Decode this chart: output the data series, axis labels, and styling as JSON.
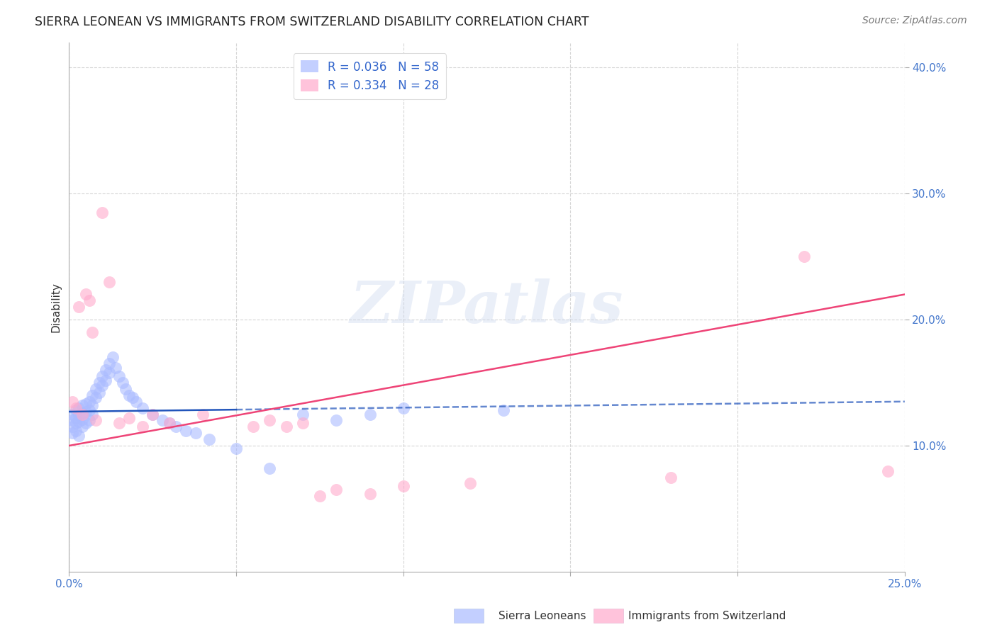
{
  "title": "SIERRA LEONEAN VS IMMIGRANTS FROM SWITZERLAND DISABILITY CORRELATION CHART",
  "source": "Source: ZipAtlas.com",
  "ylabel": "Disability",
  "xlim": [
    0.0,
    0.25
  ],
  "ylim": [
    0.0,
    0.42
  ],
  "xticks": [
    0.0,
    0.05,
    0.1,
    0.15,
    0.2,
    0.25
  ],
  "yticks": [
    0.1,
    0.2,
    0.3,
    0.4
  ],
  "xticklabels": [
    "0.0%",
    "",
    "",
    "",
    "",
    "25.0%"
  ],
  "yticklabels": [
    "10.0%",
    "20.0%",
    "30.0%",
    "40.0%"
  ],
  "sierra_color": "#aabbff",
  "swiss_color": "#ffaacc",
  "sierra_line_color": "#2255bb",
  "swiss_line_color": "#ee4477",
  "background_color": "#ffffff",
  "watermark_text": "ZIPatlas",
  "sierra_R": 0.036,
  "sierra_N": 58,
  "swiss_R": 0.334,
  "swiss_N": 28,
  "grid_color": "#cccccc",
  "sierra_x": [
    0.001,
    0.001,
    0.001,
    0.001,
    0.002,
    0.002,
    0.002,
    0.002,
    0.003,
    0.003,
    0.003,
    0.003,
    0.004,
    0.004,
    0.004,
    0.004,
    0.005,
    0.005,
    0.005,
    0.006,
    0.006,
    0.006,
    0.007,
    0.007,
    0.007,
    0.008,
    0.008,
    0.009,
    0.009,
    0.01,
    0.01,
    0.011,
    0.011,
    0.012,
    0.012,
    0.013,
    0.014,
    0.015,
    0.016,
    0.017,
    0.018,
    0.019,
    0.02,
    0.022,
    0.025,
    0.028,
    0.03,
    0.032,
    0.035,
    0.038,
    0.042,
    0.05,
    0.06,
    0.07,
    0.08,
    0.09,
    0.1,
    0.13
  ],
  "sierra_y": [
    0.125,
    0.12,
    0.115,
    0.11,
    0.128,
    0.122,
    0.118,
    0.112,
    0.13,
    0.124,
    0.119,
    0.108,
    0.132,
    0.126,
    0.121,
    0.115,
    0.133,
    0.127,
    0.118,
    0.135,
    0.128,
    0.12,
    0.14,
    0.132,
    0.125,
    0.145,
    0.138,
    0.15,
    0.142,
    0.155,
    0.148,
    0.16,
    0.152,
    0.165,
    0.158,
    0.17,
    0.162,
    0.155,
    0.15,
    0.145,
    0.14,
    0.138,
    0.135,
    0.13,
    0.125,
    0.12,
    0.118,
    0.115,
    0.112,
    0.11,
    0.105,
    0.098,
    0.082,
    0.125,
    0.12,
    0.125,
    0.13,
    0.128
  ],
  "swiss_x": [
    0.001,
    0.002,
    0.003,
    0.004,
    0.005,
    0.006,
    0.007,
    0.008,
    0.01,
    0.012,
    0.015,
    0.018,
    0.022,
    0.025,
    0.03,
    0.04,
    0.055,
    0.06,
    0.065,
    0.07,
    0.075,
    0.08,
    0.09,
    0.1,
    0.12,
    0.18,
    0.22,
    0.245
  ],
  "swiss_y": [
    0.135,
    0.13,
    0.21,
    0.125,
    0.22,
    0.215,
    0.19,
    0.12,
    0.285,
    0.23,
    0.118,
    0.122,
    0.115,
    0.125,
    0.118,
    0.125,
    0.115,
    0.12,
    0.115,
    0.118,
    0.06,
    0.065,
    0.062,
    0.068,
    0.07,
    0.075,
    0.25,
    0.08
  ]
}
